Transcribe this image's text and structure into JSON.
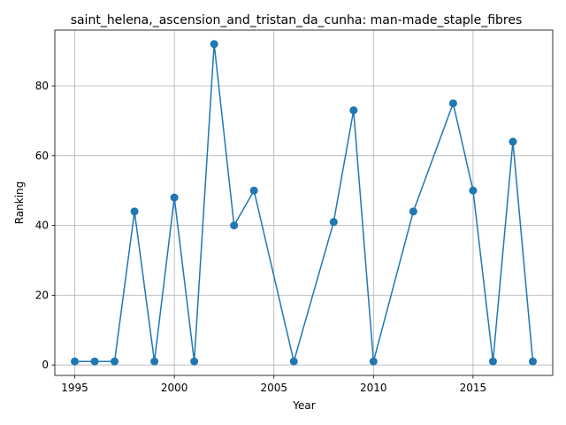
{
  "chart_data": {
    "type": "line",
    "title": "saint_helena,_ascension_and_tristan_da_cunha: man-made_staple_fibres",
    "xlabel": "Year",
    "ylabel": "Ranking",
    "xlim": [
      1994,
      2019
    ],
    "ylim": [
      -3,
      96
    ],
    "xticks": [
      1995,
      2000,
      2005,
      2010,
      2015
    ],
    "yticks": [
      0,
      20,
      40,
      60,
      80
    ],
    "grid": true,
    "series": [
      {
        "color": "#1f77b4",
        "marker": "circle",
        "x": [
          1995,
          1996,
          1997,
          1998,
          1999,
          2000,
          2001,
          2002,
          2003,
          2004,
          2006,
          2008,
          2009,
          2010,
          2012,
          2014,
          2015,
          2016,
          2017,
          2018
        ],
        "y": [
          1,
          1,
          1,
          44,
          1,
          48,
          1,
          92,
          40,
          50,
          1,
          41,
          73,
          1,
          44,
          75,
          50,
          1,
          64,
          1
        ]
      }
    ]
  }
}
